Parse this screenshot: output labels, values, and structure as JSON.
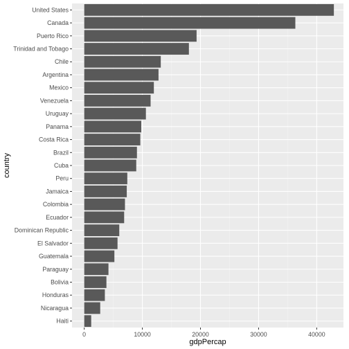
{
  "chart_data": {
    "type": "bar",
    "orientation": "horizontal",
    "xlabel": "gdpPercap",
    "ylabel": "country",
    "xlim": [
      -2100,
      44600
    ],
    "xticks": [
      0,
      10000,
      20000,
      30000,
      40000
    ],
    "xtick_labels": [
      "0",
      "10000",
      "20000",
      "30000",
      "40000"
    ],
    "grid": true,
    "legend": "none",
    "colors": {
      "panel": "#ebebeb",
      "grid_major": "#ffffff",
      "grid_minor": "#f5f5f5",
      "bar": "#595959"
    },
    "categories": [
      "United States",
      "Canada",
      "Puerto Rico",
      "Trinidad and Tobago",
      "Chile",
      "Argentina",
      "Mexico",
      "Venezuela",
      "Uruguay",
      "Panama",
      "Costa Rica",
      "Brazil",
      "Cuba",
      "Peru",
      "Jamaica",
      "Colombia",
      "Ecuador",
      "Dominican Republic",
      "El Salvador",
      "Guatemala",
      "Paraguay",
      "Bolivia",
      "Honduras",
      "Nicaragua",
      "Haiti"
    ],
    "values": [
      42950,
      36320,
      19330,
      18010,
      13170,
      12780,
      11980,
      11420,
      10610,
      9810,
      9650,
      9070,
      8950,
      7410,
      7320,
      7010,
      6870,
      6030,
      5730,
      5190,
      4170,
      3820,
      3550,
      2750,
      1200
    ]
  }
}
